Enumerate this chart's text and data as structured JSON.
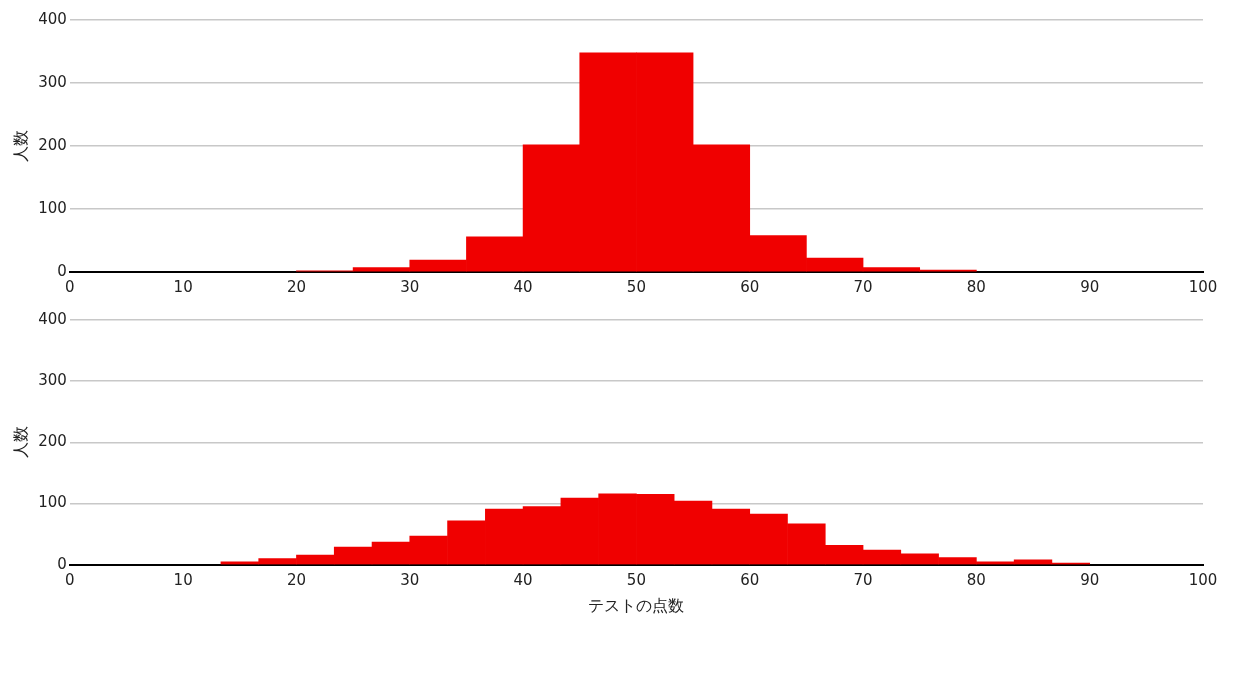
{
  "chart_data": [
    {
      "type": "histogram",
      "ylabel": "人数",
      "bins": [
        20,
        25,
        30,
        35,
        40,
        45,
        50,
        55,
        60,
        65,
        70,
        75,
        80
      ],
      "values": [
        2,
        7,
        19,
        56,
        202,
        348,
        348,
        202,
        58,
        22,
        7,
        3
      ],
      "color": "#f00000",
      "xlim": [
        0,
        100
      ],
      "xticks": [
        0,
        10,
        20,
        30,
        40,
        50,
        60,
        70,
        80,
        90,
        100
      ],
      "ylim": [
        0,
        400
      ],
      "yticks": [
        0,
        100,
        200,
        300,
        400
      ],
      "grid": "y"
    },
    {
      "type": "histogram",
      "ylabel": "人数",
      "xlabel": "テストの点数",
      "bins": [
        13.33,
        16.67,
        20,
        23.33,
        26.67,
        30,
        33.33,
        36.67,
        40,
        43.33,
        46.67,
        50,
        53.33,
        56.67,
        60,
        63.33,
        66.67,
        70,
        73.33,
        76.67,
        80,
        83.33,
        86.67,
        90
      ],
      "values": [
        5,
        10,
        16,
        29,
        37,
        47,
        72,
        91,
        95,
        109,
        116,
        115,
        104,
        91,
        83,
        67,
        32,
        24,
        18,
        12,
        5,
        8,
        3
      ],
      "color": "#f00000",
      "xlim": [
        0,
        100
      ],
      "xticks": [
        0,
        10,
        20,
        30,
        40,
        50,
        60,
        70,
        80,
        90,
        100
      ],
      "ylim": [
        0,
        400
      ],
      "yticks": [
        0,
        100,
        200,
        300,
        400
      ],
      "grid": "y"
    }
  ]
}
